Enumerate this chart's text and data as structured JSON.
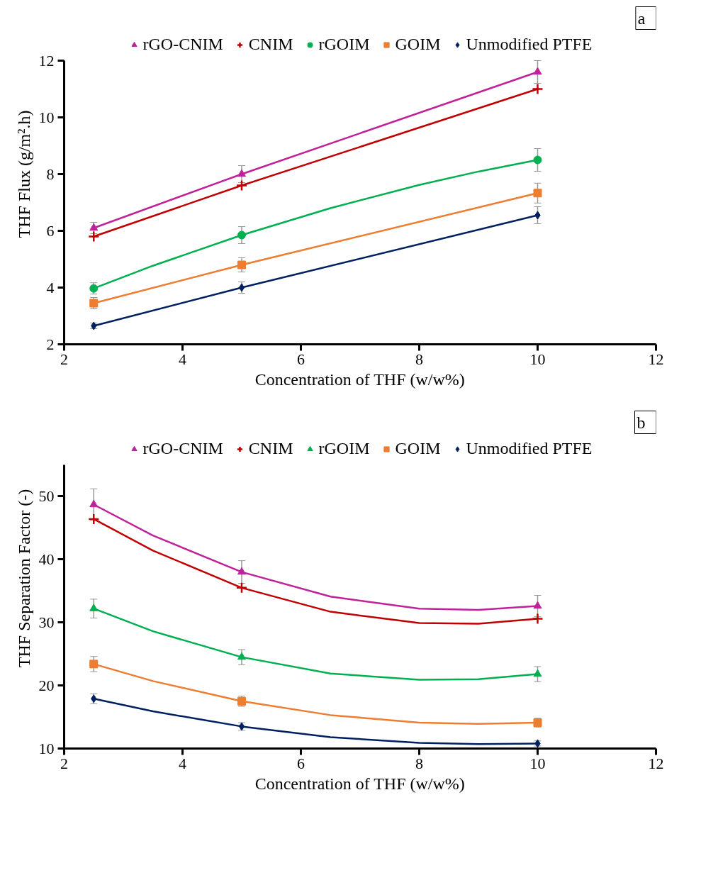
{
  "chart_data": [
    {
      "type": "scatter",
      "xlabel": "Concentration of THF (w/w%)",
      "ylabel": "THF Flux (g/m².h)",
      "annotations": [
        "a"
      ],
      "x": [
        2.5,
        5,
        10
      ],
      "xlim": [
        2,
        12
      ],
      "xticks": [
        2,
        4,
        6,
        8,
        10,
        12
      ],
      "ylim": [
        2,
        12
      ],
      "yticks": [
        2,
        4,
        6,
        8,
        10,
        12
      ],
      "grid": false,
      "legend": "top",
      "series": [
        {
          "name": "rGO-CNIM",
          "color": "#c0229a",
          "marker": "triangle",
          "values": [
            6.1,
            8.0,
            11.6
          ],
          "errors": [
            0.2,
            0.3,
            0.4
          ]
        },
        {
          "name": "CNIM",
          "color": "#c00000",
          "marker": "cross",
          "values": [
            5.8,
            7.6,
            11.0
          ]
        },
        {
          "name": "rGOIM",
          "color": "#00b050",
          "marker": "circle",
          "values": [
            3.97,
            5.85,
            8.5
          ],
          "errors": [
            0.2,
            0.3,
            0.4
          ]
        },
        {
          "name": "GOIM",
          "color": "#ed7d31",
          "marker": "square",
          "values": [
            3.45,
            4.8,
            7.33
          ],
          "errors": [
            0.2,
            0.25,
            0.35
          ]
        },
        {
          "name": "Unmodified PTFE",
          "color": "#002060",
          "marker": "diamond",
          "values": [
            2.65,
            4.0,
            6.55
          ],
          "errors": [
            0.1,
            0.2,
            0.3
          ]
        },
        {
          "type": "line",
          "color": "#c0229a",
          "x": [
            2.5,
            5,
            10
          ],
          "values": [
            6.1,
            8.0,
            11.6
          ]
        },
        {
          "type": "line",
          "color": "#c00000",
          "x": [
            2.5,
            5,
            10
          ],
          "values": [
            5.8,
            7.6,
            11.0
          ]
        },
        {
          "type": "line",
          "color": "#00b050",
          "x": [
            2.5,
            3.5,
            5,
            6.5,
            8,
            9,
            10
          ],
          "values": [
            3.97,
            4.77,
            5.85,
            6.8,
            7.62,
            8.09,
            8.5
          ]
        },
        {
          "type": "line",
          "color": "#ed7d31",
          "x": [
            2.5,
            5,
            10
          ],
          "values": [
            3.45,
            4.8,
            7.33
          ]
        },
        {
          "type": "line",
          "color": "#002060",
          "x": [
            2.5,
            5,
            10
          ],
          "values": [
            2.65,
            4.0,
            6.55
          ]
        }
      ]
    },
    {
      "type": "scatter",
      "xlabel": "Concentration of THF (w/w%)",
      "ylabel": "THF Separation Factor (-)",
      "annotations": [
        "b"
      ],
      "x": [
        2.5,
        5,
        10
      ],
      "xlim": [
        2,
        12
      ],
      "xticks": [
        2,
        4,
        6,
        8,
        10,
        12
      ],
      "ylim": [
        10,
        55
      ],
      "yticks": [
        10,
        20,
        30,
        40,
        50
      ],
      "grid": false,
      "legend": "top",
      "series": [
        {
          "name": "rGO-CNIM",
          "color": "#c0229a",
          "marker": "triangle",
          "values": [
            48.7,
            38.0,
            32.6
          ],
          "errors": [
            2.5,
            1.8,
            1.7
          ]
        },
        {
          "name": "CNIM",
          "color": "#c00000",
          "marker": "cross",
          "values": [
            46.4,
            35.5,
            30.6
          ]
        },
        {
          "name": "rGOIM",
          "color": "#00b050",
          "marker": "triangle",
          "values": [
            32.2,
            24.5,
            21.8
          ],
          "errors": [
            1.5,
            1.2,
            1.2
          ]
        },
        {
          "name": "GOIM",
          "color": "#ed7d31",
          "marker": "square",
          "values": [
            23.4,
            17.5,
            14.1
          ],
          "errors": [
            1.2,
            0.8,
            0.7
          ]
        },
        {
          "name": "Unmodified PTFE",
          "color": "#002060",
          "marker": "diamond",
          "values": [
            17.9,
            13.5,
            10.8
          ],
          "errors": [
            0.8,
            0.6,
            0.4
          ]
        },
        {
          "type": "line",
          "color": "#c0229a",
          "x": [
            2.5,
            3.5,
            5,
            6.5,
            8,
            9,
            10
          ],
          "values": [
            48.7,
            43.8,
            38.0,
            34.1,
            32.2,
            32.0,
            32.6
          ]
        },
        {
          "type": "line",
          "color": "#c00000",
          "x": [
            2.5,
            3.5,
            5,
            6.5,
            8,
            9,
            10
          ],
          "values": [
            46.4,
            41.4,
            35.5,
            31.7,
            29.9,
            29.8,
            30.6
          ]
        },
        {
          "type": "line",
          "color": "#00b050",
          "x": [
            2.5,
            3.5,
            5,
            6.5,
            8,
            9,
            10
          ],
          "values": [
            32.2,
            28.6,
            24.5,
            21.9,
            20.9,
            21.0,
            21.8
          ]
        },
        {
          "type": "line",
          "color": "#ed7d31",
          "x": [
            2.5,
            3.5,
            5,
            6.5,
            8,
            9,
            10
          ],
          "values": [
            23.4,
            20.7,
            17.5,
            15.3,
            14.1,
            13.9,
            14.1
          ]
        },
        {
          "type": "line",
          "color": "#002060",
          "x": [
            2.5,
            3.5,
            5,
            6.5,
            8,
            9,
            10
          ],
          "values": [
            17.9,
            15.9,
            13.5,
            11.8,
            10.9,
            10.7,
            10.8
          ]
        }
      ]
    }
  ]
}
